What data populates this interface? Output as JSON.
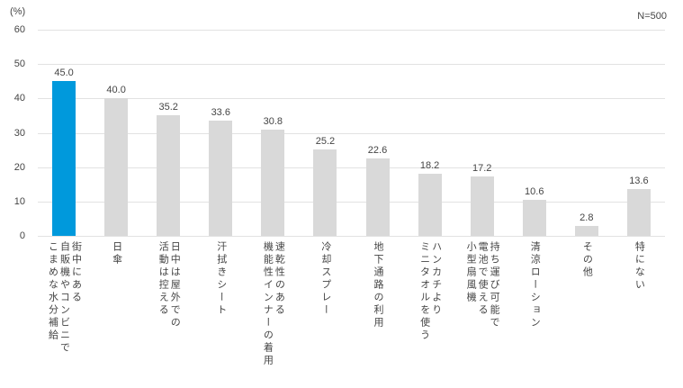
{
  "chart": {
    "unit_label": "(%)",
    "sample_label": "N=500"
  },
  "chart_data": {
    "type": "bar",
    "title": "",
    "xlabel": "",
    "ylabel": "(%)",
    "sample_size": "N=500",
    "ylim": [
      0,
      60
    ],
    "yticks": [
      0,
      10,
      20,
      30,
      40,
      50,
      60
    ],
    "grid": "horizontal",
    "legend": "none",
    "highlight_index": 0,
    "categories": [
      "街中にある自販機やコンビニでこまめな水分補給",
      "日傘",
      "日中は屋外での活動は控える",
      "汗拭きシート",
      "速乾性のある機能性インナーの着用",
      "冷却スプレー",
      "地下通路の利用",
      "ハンカチよりミニタオルを使う",
      "持ち運び可能で電池で使える小型扇風機",
      "清涼ローション",
      "その他",
      "特にない"
    ],
    "category_lines": [
      [
        "街中にある",
        "自販機やコンビニで",
        "こまめな水分補給"
      ],
      [
        "日傘"
      ],
      [
        "日中は屋外での",
        "活動は控える"
      ],
      [
        "汗拭きシート"
      ],
      [
        "速乾性のある",
        "機能性インナーの着用"
      ],
      [
        "冷却スプレー"
      ],
      [
        "地下通路の利用"
      ],
      [
        "ハンカチより",
        "ミニタオルを使う"
      ],
      [
        "持ち運び可能で",
        "電池で使える",
        "小型扇風機"
      ],
      [
        "清涼ローション"
      ],
      [
        "その他"
      ],
      [
        "特にない"
      ]
    ],
    "values": [
      45.0,
      40.0,
      35.2,
      33.6,
      30.8,
      25.2,
      22.6,
      18.2,
      17.2,
      10.6,
      2.8,
      13.6
    ],
    "value_labels": [
      "45.0",
      "40.0",
      "35.2",
      "33.6",
      "30.8",
      "25.2",
      "22.6",
      "18.2",
      "17.2",
      "10.6",
      "2.8",
      "13.6"
    ],
    "colors": {
      "highlight": "#0099DC",
      "bar": "#D9D9D9",
      "gridline": "#E2E2E2",
      "text": "#444444"
    }
  }
}
